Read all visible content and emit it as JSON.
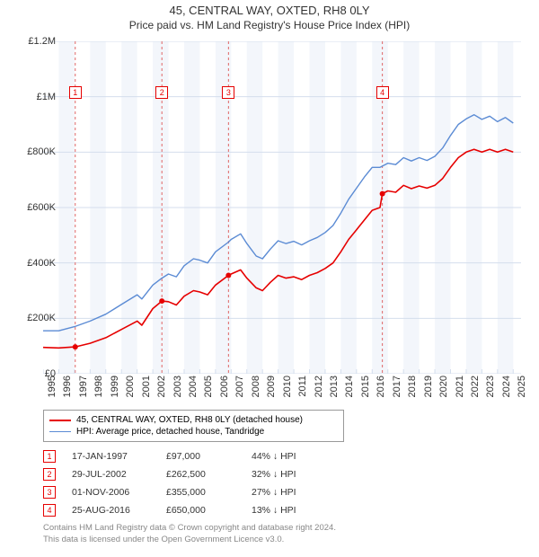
{
  "title": "45, CENTRAL WAY, OXTED, RH8 0LY",
  "subtitle": "Price paid vs. HM Land Registry's House Price Index (HPI)",
  "chart": {
    "type": "line",
    "background_color": "#ffffff",
    "band_color": "#f3f6fb",
    "grid_color": "#d4deed",
    "tick_color": "#d4deed",
    "border_color": "#cccccc",
    "x_min": 1995,
    "x_max": 2025.5,
    "x_ticks": [
      1995,
      1996,
      1997,
      1998,
      1999,
      2000,
      2001,
      2002,
      2003,
      2004,
      2005,
      2006,
      2007,
      2008,
      2009,
      2010,
      2011,
      2012,
      2013,
      2014,
      2015,
      2016,
      2017,
      2018,
      2019,
      2020,
      2021,
      2022,
      2023,
      2024,
      2025
    ],
    "y_min": 0,
    "y_max": 1200000,
    "y_ticks": [
      {
        "v": 0,
        "label": "£0"
      },
      {
        "v": 200000,
        "label": "£200K"
      },
      {
        "v": 400000,
        "label": "£400K"
      },
      {
        "v": 600000,
        "label": "£600K"
      },
      {
        "v": 800000,
        "label": "£800K"
      },
      {
        "v": 1000000,
        "label": "£1M"
      },
      {
        "v": 1200000,
        "label": "£1.2M"
      }
    ],
    "markers": [
      {
        "n": "1",
        "year": 1997.05
      },
      {
        "n": "2",
        "year": 2002.58
      },
      {
        "n": "3",
        "year": 2006.83
      },
      {
        "n": "4",
        "year": 2016.65
      }
    ],
    "marker_line_color": "#e06666",
    "marker_box_border": "#e60000",
    "series": [
      {
        "id": "price_paid",
        "color": "#e60000",
        "width": 1.6,
        "label": "45, CENTRAL WAY, OXTED, RH8 0LY (detached house)",
        "points": [
          [
            1995,
            95000
          ],
          [
            1996,
            93000
          ],
          [
            1997.05,
            97000
          ],
          [
            1998,
            110000
          ],
          [
            1999,
            130000
          ],
          [
            2000,
            160000
          ],
          [
            2001,
            190000
          ],
          [
            2001.3,
            175000
          ],
          [
            2002,
            235000
          ],
          [
            2002.58,
            262500
          ],
          [
            2003,
            260000
          ],
          [
            2003.5,
            248000
          ],
          [
            2004,
            280000
          ],
          [
            2004.6,
            300000
          ],
          [
            2005,
            295000
          ],
          [
            2005.5,
            285000
          ],
          [
            2006,
            320000
          ],
          [
            2006.83,
            355000
          ],
          [
            2007,
            360000
          ],
          [
            2007.6,
            375000
          ],
          [
            2008,
            345000
          ],
          [
            2008.6,
            310000
          ],
          [
            2009,
            300000
          ],
          [
            2009.5,
            330000
          ],
          [
            2010,
            355000
          ],
          [
            2010.5,
            345000
          ],
          [
            2011,
            350000
          ],
          [
            2011.5,
            340000
          ],
          [
            2012,
            355000
          ],
          [
            2012.5,
            365000
          ],
          [
            2013,
            380000
          ],
          [
            2013.5,
            400000
          ],
          [
            2014,
            440000
          ],
          [
            2014.5,
            485000
          ],
          [
            2015,
            520000
          ],
          [
            2015.5,
            555000
          ],
          [
            2016,
            590000
          ],
          [
            2016.5,
            600000
          ],
          [
            2016.65,
            650000
          ],
          [
            2017,
            660000
          ],
          [
            2017.5,
            655000
          ],
          [
            2018,
            680000
          ],
          [
            2018.5,
            668000
          ],
          [
            2019,
            678000
          ],
          [
            2019.5,
            670000
          ],
          [
            2020,
            680000
          ],
          [
            2020.5,
            705000
          ],
          [
            2021,
            745000
          ],
          [
            2021.5,
            780000
          ],
          [
            2022,
            800000
          ],
          [
            2022.5,
            810000
          ],
          [
            2023,
            800000
          ],
          [
            2023.5,
            810000
          ],
          [
            2024,
            800000
          ],
          [
            2024.5,
            810000
          ],
          [
            2025,
            800000
          ]
        ]
      },
      {
        "id": "hpi",
        "color": "#5b8bd4",
        "width": 1.4,
        "label": "HPI: Average price, detached house, Tandridge",
        "points": [
          [
            1995,
            155000
          ],
          [
            1996,
            155000
          ],
          [
            1997,
            170000
          ],
          [
            1998,
            190000
          ],
          [
            1999,
            215000
          ],
          [
            2000,
            250000
          ],
          [
            2001,
            285000
          ],
          [
            2001.3,
            270000
          ],
          [
            2002,
            320000
          ],
          [
            2002.58,
            345000
          ],
          [
            2003,
            360000
          ],
          [
            2003.5,
            350000
          ],
          [
            2004,
            390000
          ],
          [
            2004.6,
            415000
          ],
          [
            2005,
            410000
          ],
          [
            2005.5,
            400000
          ],
          [
            2006,
            440000
          ],
          [
            2006.83,
            475000
          ],
          [
            2007,
            485000
          ],
          [
            2007.6,
            505000
          ],
          [
            2008,
            470000
          ],
          [
            2008.6,
            425000
          ],
          [
            2009,
            415000
          ],
          [
            2009.5,
            450000
          ],
          [
            2010,
            480000
          ],
          [
            2010.5,
            470000
          ],
          [
            2011,
            478000
          ],
          [
            2011.5,
            465000
          ],
          [
            2012,
            480000
          ],
          [
            2012.5,
            492000
          ],
          [
            2013,
            510000
          ],
          [
            2013.5,
            535000
          ],
          [
            2014,
            580000
          ],
          [
            2014.5,
            630000
          ],
          [
            2015,
            670000
          ],
          [
            2015.5,
            710000
          ],
          [
            2016,
            745000
          ],
          [
            2016.5,
            745000
          ],
          [
            2017,
            760000
          ],
          [
            2017.5,
            755000
          ],
          [
            2018,
            780000
          ],
          [
            2018.5,
            768000
          ],
          [
            2019,
            780000
          ],
          [
            2019.5,
            770000
          ],
          [
            2020,
            785000
          ],
          [
            2020.5,
            815000
          ],
          [
            2021,
            860000
          ],
          [
            2021.5,
            900000
          ],
          [
            2022,
            920000
          ],
          [
            2022.5,
            935000
          ],
          [
            2023,
            918000
          ],
          [
            2023.5,
            930000
          ],
          [
            2024,
            910000
          ],
          [
            2024.5,
            925000
          ],
          [
            2025,
            905000
          ]
        ]
      }
    ]
  },
  "legend": {
    "rows": [
      {
        "color": "#e60000",
        "width": 2,
        "label": "45, CENTRAL WAY, OXTED, RH8 0LY (detached house)"
      },
      {
        "color": "#5b8bd4",
        "width": 1.5,
        "label": "HPI: Average price, detached house, Tandridge"
      }
    ]
  },
  "transactions": [
    {
      "n": "1",
      "date": "17-JAN-1997",
      "price": "£97,000",
      "diff": "44% ↓ HPI"
    },
    {
      "n": "2",
      "date": "29-JUL-2002",
      "price": "£262,500",
      "diff": "32% ↓ HPI"
    },
    {
      "n": "3",
      "date": "01-NOV-2006",
      "price": "£355,000",
      "diff": "27% ↓ HPI"
    },
    {
      "n": "4",
      "date": "25-AUG-2016",
      "price": "£650,000",
      "diff": "13% ↓ HPI"
    }
  ],
  "footer": {
    "line1": "Contains HM Land Registry data © Crown copyright and database right 2024.",
    "line2": "This data is licensed under the Open Government Licence v3.0."
  }
}
